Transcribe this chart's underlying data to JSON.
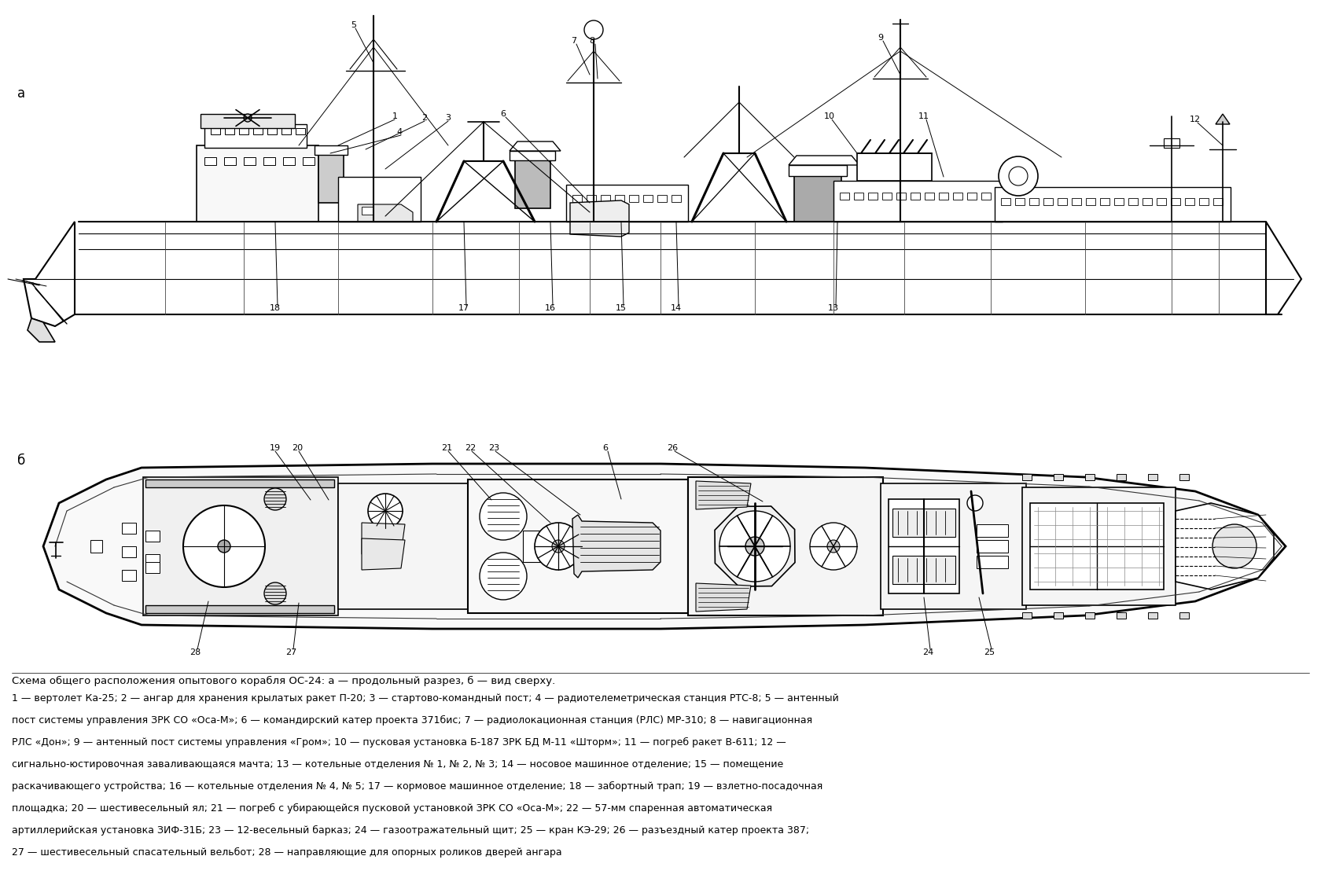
{
  "bg_color": "#ffffff",
  "label_a": "а",
  "label_b": "б",
  "caption": "Схема общего расположения опытового корабля ОС-24: а — продольный разрез, б — вид сверху.",
  "legend_lines": [
    "1 — вертолет Ка-25; 2 — ангар для хранения крылатых ракет П-20; 3 — стартово-командный пост; 4 — радиотелеметрическая станция РТС-8; 5 — антенный",
    "пост системы управления ЗРК СО «Оса-М»; 6 — командирский катер проекта 371бис; 7 — радиолокационная станция (РЛС) МР-310; 8 — навигационная",
    "РЛС «Дон»; 9 — антенный пост системы управления «Гром»; 10 — пусковая установка Б-187 ЗРК БД М-11 «Шторм»; 11 — погреб ракет В-611; 12 —",
    "сигнально-юстировочная заваливающаяся мачта; 13 — котельные отделения № 1, № 2, № 3; 14 — носовое машинное отделение; 15 — помещение",
    "раскачивающего устройства; 16 — котельные отделения № 4, № 5; 17 — кормовое машинное отделение; 18 — забортный трап; 19 — взлетно-посадочная",
    "площадка; 20 — шестивесельный ял; 21 — погреб с убирающейся пусковой установкой ЗРК СО «Оса-М»; 22 — 57-мм спаренная автоматическая",
    "артиллерийская установка ЗИФ-31Б; 23 — 12-весельный барказ; 24 — газоотражательный щит; 25 — кран КЭ-29; 26 — разъездный катер проекта 387;",
    "27 — шестивесельный спасательный вельбот; 28 — направляющие для опорных роликов дверей ангара"
  ],
  "line_color": "#000000",
  "text_color": "#000000",
  "font_size_caption": 9.5,
  "font_size_legend": 9.0,
  "font_size_label": 12
}
